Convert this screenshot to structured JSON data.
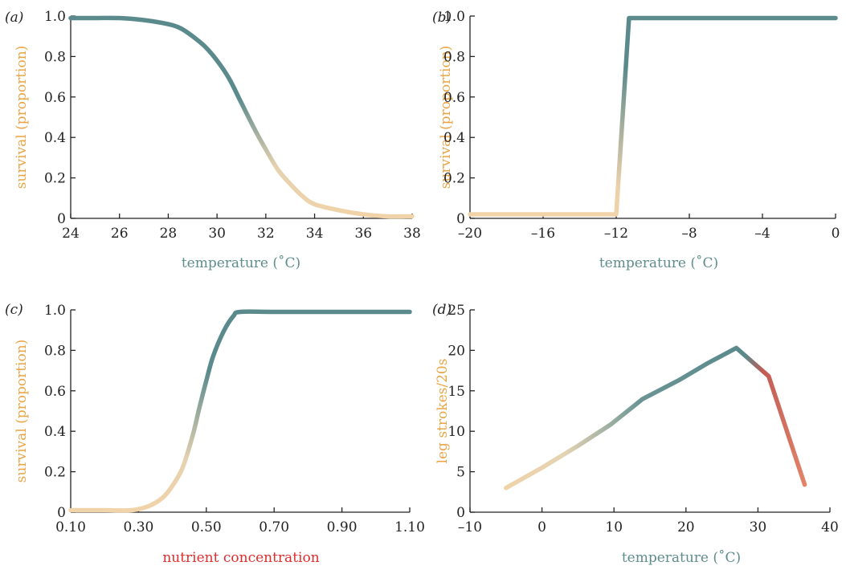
{
  "colors": {
    "teal": "#5a8a8c",
    "sand": "#f0d3a8",
    "red": "#d45a52",
    "ylabel": "#e8a545",
    "xlabel": "#5e8d8b",
    "xlabel_red": "#e02d2d"
  },
  "chart_data": [
    {
      "panel": "(a)",
      "type": "line",
      "xlabel": "temperature (˚C)",
      "ylabel": "survival (proportion)",
      "xlim": [
        24,
        38
      ],
      "ylim": [
        0,
        1.0
      ],
      "xticks": [
        "24",
        "26",
        "28",
        "30",
        "32",
        "34",
        "36",
        "38"
      ],
      "yticks": [
        "0",
        "0.2",
        "0.4",
        "0.6",
        "0.8",
        "1.0"
      ],
      "x": [
        24,
        25,
        26,
        27,
        28,
        28.5,
        29,
        29.5,
        30,
        30.5,
        31,
        31.5,
        32,
        32.5,
        33,
        33.5,
        34,
        35,
        36,
        37,
        38
      ],
      "y": [
        0.99,
        0.99,
        0.99,
        0.98,
        0.96,
        0.94,
        0.9,
        0.85,
        0.78,
        0.69,
        0.57,
        0.45,
        0.34,
        0.24,
        0.17,
        0.11,
        0.07,
        0.04,
        0.02,
        0.01,
        0.01
      ]
    },
    {
      "panel": "(b)",
      "type": "line",
      "xlabel": "temperature (˚C)",
      "ylabel": "survival (proportion)",
      "xlim": [
        -20,
        0
      ],
      "ylim": [
        0,
        1.0
      ],
      "xticks": [
        "–20",
        "–16",
        "–12",
        "–8",
        "–4",
        "0"
      ],
      "yticks": [
        "0",
        "0.2",
        "0.4",
        "0.6",
        "0.8",
        "1.0"
      ],
      "x": [
        -20,
        -12,
        -11.3,
        0
      ],
      "y": [
        0.02,
        0.02,
        0.99,
        0.99
      ]
    },
    {
      "panel": "(c)",
      "type": "line",
      "xlabel": "nutrient concentration",
      "ylabel": "survival (proportion)",
      "xlim": [
        0.1,
        1.1
      ],
      "ylim": [
        0,
        1.0
      ],
      "xticks": [
        "0.10",
        "0.30",
        "0.50",
        "0.70",
        "0.90",
        "1.10"
      ],
      "yticks": [
        "0",
        "0.2",
        "0.4",
        "0.6",
        "0.8",
        "1.0"
      ],
      "x": [
        0.1,
        0.2,
        0.28,
        0.33,
        0.37,
        0.4,
        0.43,
        0.46,
        0.48,
        0.5,
        0.52,
        0.55,
        0.58,
        0.6,
        0.7,
        0.9,
        1.1
      ],
      "y": [
        0.01,
        0.01,
        0.01,
        0.03,
        0.07,
        0.13,
        0.22,
        0.38,
        0.52,
        0.65,
        0.77,
        0.89,
        0.97,
        0.99,
        0.99,
        0.99,
        0.99
      ]
    },
    {
      "panel": "(d)",
      "type": "line",
      "xlabel": "temperature (˚C)",
      "ylabel": "leg strokes/20s",
      "xlim": [
        -10,
        40
      ],
      "ylim": [
        0,
        25
      ],
      "xticks": [
        "–10",
        "0",
        "10",
        "20",
        "30",
        "40"
      ],
      "yticks": [
        "0",
        "5",
        "10",
        "15",
        "20",
        "25"
      ],
      "x": [
        -5,
        0,
        5,
        9.5,
        14,
        19,
        23,
        27,
        31.5,
        36.5
      ],
      "y": [
        3.0,
        5.5,
        8.2,
        10.8,
        14.0,
        16.3,
        18.4,
        20.3,
        16.8,
        3.4
      ]
    }
  ]
}
